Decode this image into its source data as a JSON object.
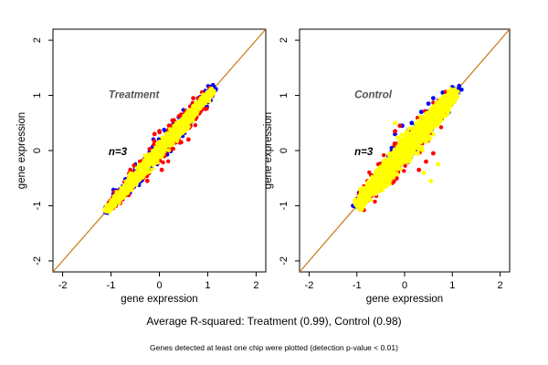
{
  "figure": {
    "summary": "Average R-squared: Treatment (0.99), Control (0.98)",
    "footnote": "Genes detected at least one chip were plotted (detection p-value < 0.01)"
  },
  "chart_data": [
    {
      "type": "scatter",
      "panel_label": "Treatment",
      "n_label": "n=3",
      "xlabel": "gene expression",
      "ylabel": "gene expression",
      "xlim": [
        -2.2,
        2.2
      ],
      "ylim": [
        -2.2,
        2.2
      ],
      "xticks": [
        "-2",
        "-1",
        "0",
        "1",
        "2"
      ],
      "yticks": [
        "-2",
        "-1",
        "0",
        "1",
        "2"
      ],
      "grid": false,
      "reference_line": {
        "slope": 1,
        "intercept": 0,
        "color": "#c87814"
      },
      "series": [
        {
          "color": "#0000ff",
          "range": [
            -1.1,
            1.15
          ],
          "spread": 0.07,
          "points": [
            [
              -0.95,
              -0.78
            ],
            [
              -0.7,
              -0.52
            ],
            [
              -0.3,
              -0.15
            ],
            [
              0.2,
              0.38
            ],
            [
              0.55,
              0.72
            ],
            [
              0.8,
              0.95
            ],
            [
              1.05,
              1.15
            ],
            [
              0.95,
              1.08
            ],
            [
              0.3,
              0.5
            ],
            [
              -0.5,
              -0.32
            ]
          ]
        },
        {
          "color": "#ff0000",
          "range": [
            -1.0,
            1.1
          ],
          "spread": 0.08,
          "points": [
            [
              -0.1,
              0.3
            ],
            [
              0.0,
              0.35
            ],
            [
              -0.25,
              -0.55
            ],
            [
              0.05,
              -0.35
            ],
            [
              0.45,
              0.65
            ],
            [
              0.7,
              0.95
            ],
            [
              -0.4,
              -0.2
            ],
            [
              0.3,
              0.55
            ],
            [
              0.6,
              0.2
            ],
            [
              0.45,
              0.15
            ],
            [
              0.95,
              1.0
            ],
            [
              -0.6,
              -0.35
            ],
            [
              0.2,
              0.45
            ],
            [
              0.1,
              -0.1
            ]
          ]
        },
        {
          "color": "#ffff00",
          "range": [
            -1.1,
            1.1
          ],
          "spread": 0.06,
          "points": []
        }
      ]
    },
    {
      "type": "scatter",
      "panel_label": "Control",
      "n_label": "n=3",
      "xlabel": "gene expression",
      "ylabel": "gene expression",
      "xlim": [
        -2.2,
        2.2
      ],
      "ylim": [
        -2.2,
        2.2
      ],
      "xticks": [
        "-2",
        "-1",
        "0",
        "1",
        "2"
      ],
      "yticks": [
        "-2",
        "-1",
        "0",
        "1",
        "2"
      ],
      "grid": false,
      "reference_line": {
        "slope": 1,
        "intercept": 0,
        "color": "#c87814"
      },
      "series": [
        {
          "color": "#0000ff",
          "range": [
            -1.05,
            1.15
          ],
          "spread": 0.08,
          "points": [
            [
              0.6,
              0.95
            ],
            [
              0.8,
              1.05
            ],
            [
              1.0,
              1.15
            ],
            [
              0.35,
              0.7
            ],
            [
              0.15,
              0.5
            ],
            [
              0.5,
              0.85
            ],
            [
              -0.2,
              0.3
            ],
            [
              -0.05,
              0.45
            ]
          ]
        },
        {
          "color": "#ff0000",
          "range": [
            -1.0,
            1.0
          ],
          "spread": 0.09,
          "points": [
            [
              -0.2,
              0.35
            ],
            [
              -0.1,
              0.45
            ],
            [
              -0.85,
              -0.65
            ],
            [
              -0.55,
              -0.25
            ],
            [
              0.45,
              -0.2
            ],
            [
              0.6,
              -0.05
            ],
            [
              0.3,
              -0.35
            ],
            [
              -0.7,
              -0.45
            ]
          ]
        },
        {
          "color": "#ffff00",
          "range": [
            -1.0,
            1.05
          ],
          "spread": 0.1,
          "points": [
            [
              0.4,
              -0.4
            ],
            [
              0.55,
              -0.55
            ],
            [
              0.7,
              -0.25
            ],
            [
              -0.2,
              0.5
            ]
          ]
        }
      ]
    }
  ]
}
